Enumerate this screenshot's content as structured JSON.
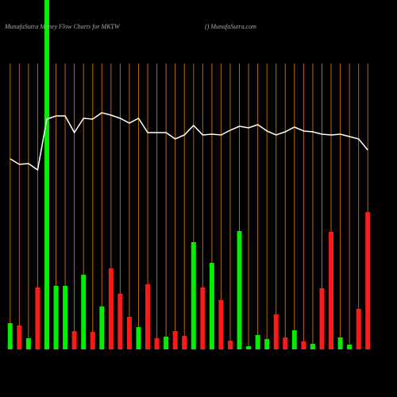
{
  "chart_data": {
    "type": "bar",
    "title": "MunafaSutra  Money Flow  Charts for MKTW",
    "subtitle": "() MunafaSutra.com",
    "categories": [
      null,
      null,
      null,
      null,
      null,
      null,
      null,
      null,
      null,
      null,
      null,
      null,
      null,
      null,
      null,
      null,
      null,
      null,
      null,
      null,
      null,
      null,
      null,
      null,
      null,
      null,
      null,
      null,
      null,
      null,
      null,
      null,
      null,
      null,
      null,
      null,
      null,
      null,
      null,
      null
    ],
    "values": [
      33,
      30,
      14,
      78,
      440,
      80,
      80,
      23,
      94,
      22,
      54,
      102,
      70,
      41,
      28,
      82,
      14,
      16,
      23,
      17,
      135,
      78,
      109,
      62,
      11,
      149,
      4,
      18,
      13,
      44,
      15,
      24,
      10,
      7,
      77,
      148,
      15,
      6,
      51,
      173
    ],
    "colors": [
      "#00ee00",
      "#ff1a1a",
      "#00ee00",
      "#ff1a1a",
      "#00ee00",
      "#00ee00",
      "#00ee00",
      "#ff1a1a",
      "#00ee00",
      "#ff1a1a",
      "#00ee00",
      "#ff1a1a",
      "#ff1a1a",
      "#ff1a1a",
      "#00ee00",
      "#ff1a1a",
      "#ff1a1a",
      "#00ee00",
      "#ff1a1a",
      "#ff1a1a",
      "#00ee00",
      "#ff1a1a",
      "#00ee00",
      "#ff1a1a",
      "#ff1a1a",
      "#00ee00",
      "#00ee00",
      "#00ee00",
      "#00ee00",
      "#ff1a1a",
      "#ff1a1a",
      "#00ee00",
      "#ff1a1a",
      "#00ee00",
      "#ff1a1a",
      "#ff1a1a",
      "#00ee00",
      "#00ee00",
      "#ff1a1a",
      "#ff1a1a"
    ],
    "line": {
      "color": "#ffffff",
      "values": [
        240,
        233,
        234,
        226,
        290,
        294,
        294,
        273,
        291,
        290,
        298,
        295,
        291,
        285,
        291,
        273,
        273,
        273,
        265,
        270,
        282,
        270,
        271,
        270,
        276,
        281,
        279,
        283,
        275,
        270,
        274,
        280,
        275,
        274,
        271,
        270,
        271,
        268,
        265,
        251
      ]
    },
    "category_line_color": "#b86a00",
    "ylim": [
      0,
      440
    ]
  }
}
